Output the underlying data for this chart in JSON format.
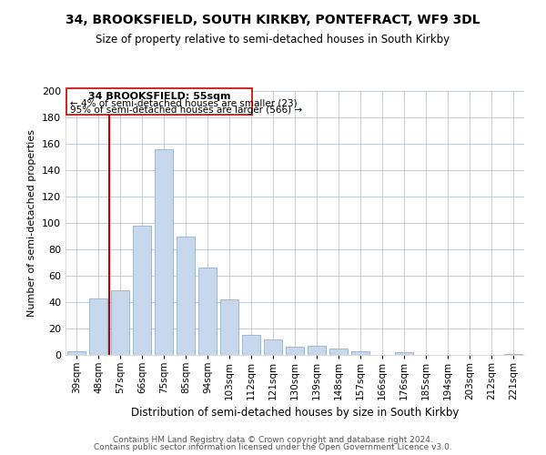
{
  "title": "34, BROOKSFIELD, SOUTH KIRKBY, PONTEFRACT, WF9 3DL",
  "subtitle": "Size of property relative to semi-detached houses in South Kirkby",
  "xlabel": "Distribution of semi-detached houses by size in South Kirkby",
  "ylabel": "Number of semi-detached properties",
  "bar_color": "#c8d8ec",
  "bar_edge_color": "#a0b8d0",
  "bins": [
    "39sqm",
    "48sqm",
    "57sqm",
    "66sqm",
    "75sqm",
    "85sqm",
    "94sqm",
    "103sqm",
    "112sqm",
    "121sqm",
    "130sqm",
    "139sqm",
    "148sqm",
    "157sqm",
    "166sqm",
    "176sqm",
    "185sqm",
    "194sqm",
    "203sqm",
    "212sqm",
    "221sqm"
  ],
  "values": [
    3,
    43,
    49,
    98,
    156,
    90,
    66,
    42,
    15,
    12,
    6,
    7,
    5,
    3,
    0,
    2,
    0,
    0,
    0,
    0,
    1
  ],
  "marker_color": "#cc0000",
  "annotation_title": "34 BROOKSFIELD: 55sqm",
  "annotation_line1": "← 4% of semi-detached houses are smaller (23)",
  "annotation_line2": "95% of semi-detached houses are larger (566) →",
  "footer1": "Contains HM Land Registry data © Crown copyright and database right 2024.",
  "footer2": "Contains public sector information licensed under the Open Government Licence v3.0.",
  "ylim": [
    0,
    200
  ],
  "yticks": [
    0,
    20,
    40,
    60,
    80,
    100,
    120,
    140,
    160,
    180,
    200
  ],
  "background_color": "#ffffff",
  "grid_color": "#c0ccd8"
}
